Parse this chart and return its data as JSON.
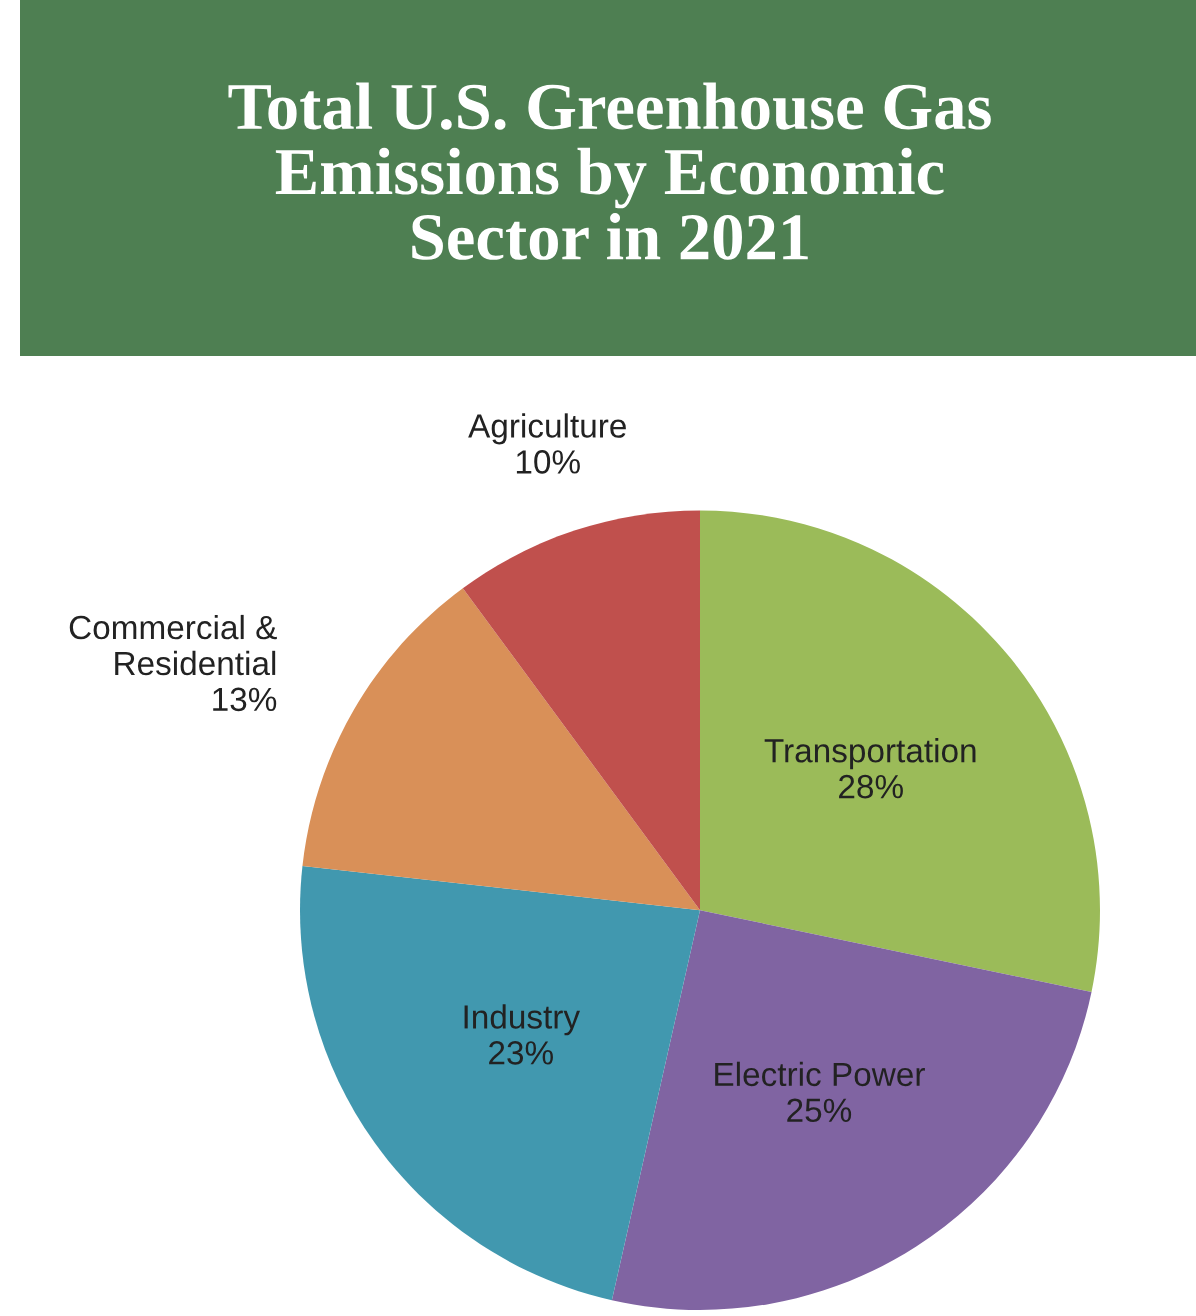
{
  "chart_data": {
    "type": "pie",
    "title": "Total U.S. Greenhouse Gas\nEmissions by Economic\nSector in 2021",
    "categories": [
      "Transportation",
      "Electric Power",
      "Industry",
      "Commercial &\nResidential",
      "Agriculture"
    ],
    "values": [
      28,
      25,
      23,
      13,
      10
    ],
    "value_labels": [
      "28%",
      "25%",
      "23%",
      "13%",
      "10%"
    ],
    "colors": [
      "#9bbb59",
      "#8064a2",
      "#4198af",
      "#d99058",
      "#c0504d"
    ],
    "legend": false
  }
}
